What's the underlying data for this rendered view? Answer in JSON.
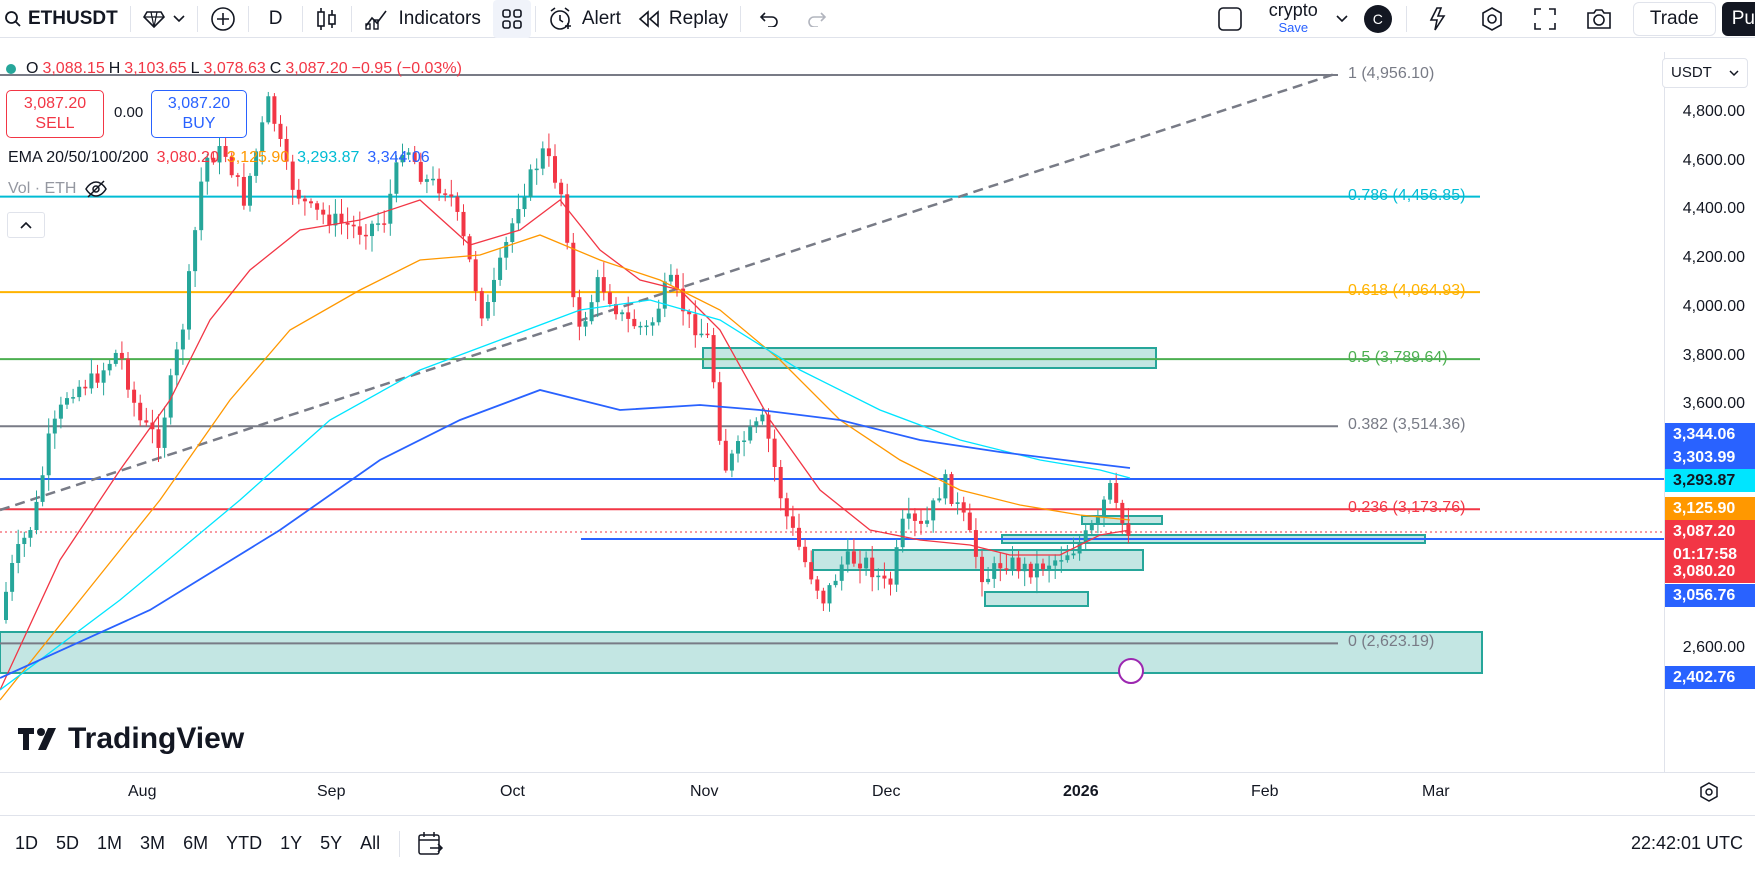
{
  "toolbar": {
    "symbol": "ETHUSDT",
    "interval": "D",
    "indicators_label": "Indicators",
    "alert_label": "Alert",
    "replay_label": "Replay",
    "layout_name": "crypto",
    "layout_status": "Save",
    "avatar_letter": "C",
    "trade_label": "Trade",
    "publish_label": "Pu"
  },
  "legend": {
    "open_label": "O",
    "open": "3,088.15",
    "high_label": "H",
    "high": "3,103.65",
    "low_label": "L",
    "low": "3,078.63",
    "close_label": "C",
    "close": "3,087.20",
    "change": "−0.95 (−0.03%)",
    "sell_price": "3,087.20",
    "sell_label": "SELL",
    "spread": "0.00",
    "buy_price": "3,087.20",
    "buy_label": "BUY",
    "ema_title": "EMA 20/50/100/200",
    "ema20": "3,080.20",
    "ema50": "3,125.90",
    "ema100": "3,293.87",
    "ema200": "3,344.06",
    "volume_label": "Vol · ETH"
  },
  "colors": {
    "up": "#26a69a",
    "down": "#f23645",
    "ema20": "#f23645",
    "ema50": "#ff9800",
    "ema100": "#00e5ff",
    "ema200": "#2962ff",
    "fib0": "#787b86",
    "fib0236": "#f23645",
    "fib0382": "#787b86",
    "fib05": "#4caf50",
    "fib0618": "#ffb300",
    "fib0786": "#00bcd4",
    "fib1": "#787b86",
    "zone": "#26a69a"
  },
  "fib_levels": [
    {
      "ratio": "1",
      "price": "4,956.10",
      "value": 4956.1,
      "key": "fib1"
    },
    {
      "ratio": "0.786",
      "price": "4,456.85",
      "value": 4456.85,
      "key": "fib0786"
    },
    {
      "ratio": "0.618",
      "price": "4,064.93",
      "value": 4064.93,
      "key": "fib0618"
    },
    {
      "ratio": "0.5",
      "price": "3,789.64",
      "value": 3789.64,
      "key": "fib05"
    },
    {
      "ratio": "0.382",
      "price": "3,514.36",
      "value": 3514.36,
      "key": "fib0382"
    },
    {
      "ratio": "0.236",
      "price": "3,173.76",
      "value": 3173.76,
      "key": "fib0236"
    },
    {
      "ratio": "0",
      "price": "2,623.19",
      "value": 2623.19,
      "key": "fib0"
    }
  ],
  "price_axis": {
    "currency": "USDT",
    "ticks": [
      "4,800.00",
      "4,600.00",
      "4,400.00",
      "4,200.00",
      "4,000.00",
      "3,800.00",
      "3,600.00",
      "2,600.00"
    ],
    "tick_values": [
      4800,
      4600,
      4400,
      4200,
      4000,
      3800,
      3600,
      2600
    ],
    "badges": [
      {
        "text": "3,344.06",
        "color": "#2962ff"
      },
      {
        "text": "3,303.99",
        "color": "#2962ff"
      },
      {
        "text": "3,293.87",
        "color": "#00e5ff"
      },
      {
        "text": "3,125.90",
        "color": "#ff9800"
      },
      {
        "text": "3,087.20",
        "color": "#f23645"
      },
      {
        "text": "01:17:58",
        "color": "#f23645"
      },
      {
        "text": "3,080.20",
        "color": "#f23645"
      },
      {
        "text": "3,056.76",
        "color": "#2962ff"
      },
      {
        "text": "2,402.76",
        "color": "#2962ff"
      }
    ]
  },
  "time_axis": {
    "labels": [
      "Aug",
      "Sep",
      "Oct",
      "Nov",
      "Dec",
      "2026",
      "Feb",
      "Mar"
    ]
  },
  "bottombar": {
    "ranges": [
      "1D",
      "5D",
      "1M",
      "3M",
      "6M",
      "YTD",
      "1Y",
      "5Y",
      "All"
    ],
    "clock": "22:42:01 UTC"
  },
  "watermark": "TradingView"
}
